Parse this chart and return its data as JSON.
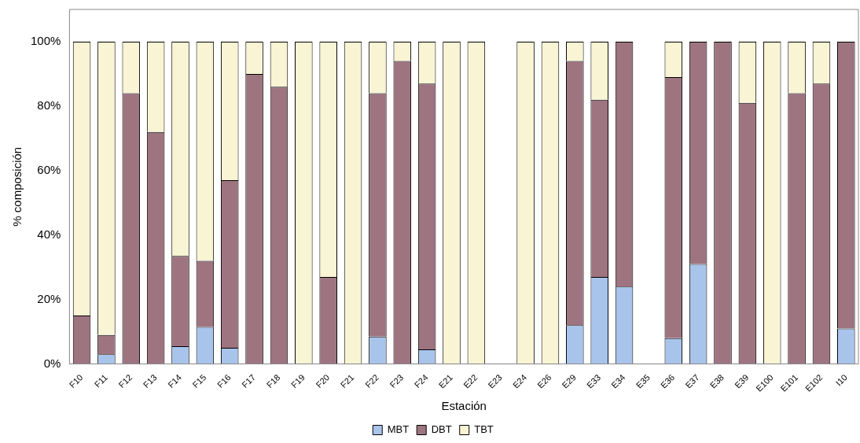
{
  "chart_data": {
    "type": "bar",
    "stacked": true,
    "xlabel": "Estación",
    "ylabel": "% composición",
    "categories": [
      "F10",
      "F11",
      "F12",
      "F13",
      "F14",
      "F15",
      "F16",
      "F17",
      "F18",
      "F19",
      "F20",
      "F21",
      "F22",
      "F23",
      "F24",
      "E21",
      "E22",
      "E23",
      "E24",
      "E26",
      "E29",
      "E33",
      "E34",
      "E35",
      "E36",
      "E37",
      "E38",
      "E39",
      "E100",
      "E101",
      "E102",
      "I10"
    ],
    "series": [
      {
        "name": "MBT",
        "color": "#a9c4eb",
        "values": [
          0,
          3,
          0,
          0,
          5.5,
          11.5,
          5,
          0,
          0,
          0,
          0,
          0,
          8.5,
          0,
          4.5,
          0,
          0,
          0,
          0,
          0,
          12,
          27,
          24,
          0,
          8,
          31,
          0,
          0,
          0,
          0,
          0,
          11
        ]
      },
      {
        "name": "DBT",
        "color": "#9e7480",
        "values": [
          15,
          6,
          84,
          72,
          28,
          20.5,
          52,
          90,
          86,
          0,
          27,
          0,
          75.5,
          94,
          82.5,
          0,
          0,
          0,
          0,
          0,
          82,
          55,
          76,
          0,
          81,
          69,
          100,
          81,
          0,
          84,
          87,
          89
        ]
      },
      {
        "name": "TBT",
        "color": "#f8f4d4",
        "values": [
          85,
          91,
          16,
          28,
          66.5,
          68,
          43,
          10,
          14,
          100,
          73,
          100,
          16,
          6,
          13,
          100,
          100,
          0,
          100,
          100,
          6,
          18,
          0,
          0,
          11,
          0,
          0,
          19,
          100,
          16,
          13,
          0
        ]
      }
    ],
    "ylim": [
      0,
      110
    ],
    "yticks": [
      {
        "value": 0,
        "label": "0%"
      },
      {
        "value": 20,
        "label": "20%"
      },
      {
        "value": 40,
        "label": "40%"
      },
      {
        "value": 60,
        "label": "60%"
      },
      {
        "value": 80,
        "label": "80%"
      },
      {
        "value": 100,
        "label": "100%"
      }
    ],
    "grid": false,
    "legend": "bottom"
  }
}
